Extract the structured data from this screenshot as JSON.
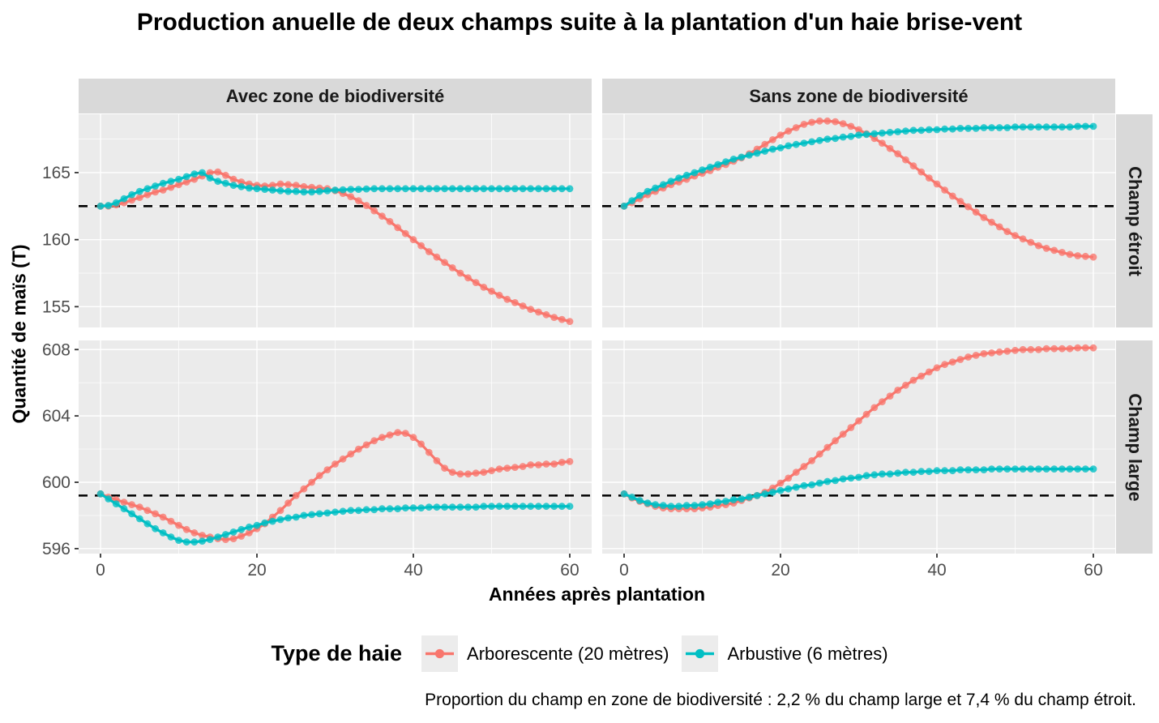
{
  "title": "Production anuelle de deux champs suite à la plantation d'un haie brise-vent",
  "caption": "Proportion du champ en zone de biodiversité :  2,2 % du champ large et 7,4 % du champ étroit.",
  "legend": {
    "title": "Type de haie",
    "entries": [
      {
        "label": "Arborescente (20 mètres)",
        "color": "#F8766D"
      },
      {
        "label": "Arbustive (6 mètres)",
        "color": "#00BFC4"
      }
    ]
  },
  "colors": {
    "arborescente": "#F8766D",
    "arbustive": "#00BFC4",
    "panel_bg": "#EBEBEB",
    "strip_bg": "#D9D9D9",
    "grid": "#FFFFFF",
    "hline": "#000000",
    "tick_label": "#4D4D4D",
    "tick_mark": "#333333"
  },
  "chart_data": {
    "type": "line",
    "title": "Production anuelle de deux champs suite à la plantation d'un haie brise-vent",
    "xlabel": "Années après plantation",
    "ylabel": "Quantité de maïs (T)",
    "legend_position": "bottom",
    "grid": true,
    "col_facets": [
      "Avec zone de biodiversité",
      "Sans zone de biodiversité"
    ],
    "row_facets": [
      "Champ étroit",
      "Champ large"
    ],
    "x_axis": {
      "ticks": [
        0,
        20,
        40,
        60
      ],
      "lim": [
        -2.8,
        62.8
      ],
      "start": 0,
      "step": 1,
      "count": 61
    },
    "rows": [
      {
        "name": "Champ étroit",
        "y_ticks": [
          155,
          160,
          165
        ],
        "ylim": [
          153.45,
          169.35
        ],
        "hline": 162.5
      },
      {
        "name": "Champ large",
        "y_ticks": [
          596,
          600,
          604,
          608
        ],
        "ylim": [
          595.7,
          608.55
        ],
        "hline": 599.2
      }
    ],
    "panels": [
      {
        "col": 0,
        "row": 0,
        "col_facet": "Avec zone de biodiversité",
        "row_facet": "Champ étroit",
        "series": [
          {
            "name": "Arborescente (20 mètres)",
            "values": [
              162.5,
              162.5,
              162.6,
              162.75,
              162.95,
              163.15,
              163.35,
              163.55,
              163.7,
              163.9,
              164.1,
              164.3,
              164.5,
              164.75,
              165.0,
              165.05,
              164.8,
              164.5,
              164.3,
              164.15,
              164.05,
              164.0,
              164.05,
              164.15,
              164.1,
              164.05,
              163.95,
              163.9,
              163.85,
              163.8,
              163.65,
              163.45,
              163.2,
              162.9,
              162.55,
              162.15,
              161.75,
              161.35,
              160.9,
              160.45,
              160.0,
              159.55,
              159.1,
              158.7,
              158.3,
              157.9,
              157.5,
              157.15,
              156.8,
              156.45,
              156.15,
              155.85,
              155.55,
              155.3,
              155.05,
              154.8,
              154.6,
              154.4,
              154.2,
              154.05,
              153.9
            ]
          },
          {
            "name": "Arbustive (6 mètres)",
            "values": [
              162.5,
              162.55,
              162.75,
              163.05,
              163.35,
              163.6,
              163.8,
              164.0,
              164.2,
              164.35,
              164.5,
              164.7,
              164.9,
              165.0,
              164.6,
              164.35,
              164.2,
              164.05,
              163.95,
              163.85,
              163.8,
              163.75,
              163.7,
              163.65,
              163.6,
              163.6,
              163.55,
              163.55,
              163.6,
              163.65,
              163.7,
              163.72,
              163.75,
              163.75,
              163.78,
              163.8,
              163.8,
              163.8,
              163.8,
              163.8,
              163.8,
              163.8,
              163.8,
              163.8,
              163.8,
              163.8,
              163.8,
              163.8,
              163.8,
              163.8,
              163.8,
              163.8,
              163.8,
              163.8,
              163.8,
              163.8,
              163.8,
              163.8,
              163.8,
              163.8,
              163.8
            ]
          }
        ]
      },
      {
        "col": 1,
        "row": 0,
        "col_facet": "Sans zone de biodiversité",
        "row_facet": "Champ étroit",
        "series": [
          {
            "name": "Arborescente (20 mètres)",
            "values": [
              162.5,
              162.75,
              163.05,
              163.35,
              163.6,
              163.85,
              164.1,
              164.3,
              164.5,
              164.75,
              164.95,
              165.15,
              165.4,
              165.6,
              165.85,
              166.1,
              166.4,
              166.75,
              167.1,
              167.45,
              167.8,
              168.1,
              168.35,
              168.6,
              168.75,
              168.85,
              168.85,
              168.8,
              168.65,
              168.45,
              168.2,
              167.9,
              167.55,
              167.2,
              166.8,
              166.4,
              165.95,
              165.5,
              165.05,
              164.6,
              164.15,
              163.7,
              163.25,
              162.85,
              162.45,
              162.05,
              161.65,
              161.3,
              160.95,
              160.6,
              160.3,
              160.05,
              159.8,
              159.55,
              159.35,
              159.2,
              159.05,
              158.9,
              158.8,
              158.75,
              158.7
            ]
          },
          {
            "name": "Arbustive (6 mètres)",
            "values": [
              162.5,
              162.9,
              163.3,
              163.6,
              163.85,
              164.1,
              164.35,
              164.6,
              164.8,
              165.0,
              165.2,
              165.4,
              165.6,
              165.8,
              166.0,
              166.15,
              166.3,
              166.45,
              166.6,
              166.75,
              166.85,
              167.0,
              167.1,
              167.2,
              167.3,
              167.4,
              167.5,
              167.55,
              167.65,
              167.7,
              167.8,
              167.85,
              167.9,
              167.95,
              168.0,
              168.05,
              168.1,
              168.15,
              168.15,
              168.2,
              168.2,
              168.25,
              168.25,
              168.3,
              168.3,
              168.3,
              168.35,
              168.35,
              168.35,
              168.35,
              168.4,
              168.4,
              168.4,
              168.4,
              168.4,
              168.4,
              168.4,
              168.4,
              168.45,
              168.45,
              168.45
            ]
          }
        ]
      },
      {
        "col": 0,
        "row": 1,
        "col_facet": "Avec zone de biodiversité",
        "row_facet": "Champ large",
        "series": [
          {
            "name": "Arborescente (20 mètres)",
            "values": [
              599.3,
              599.1,
              598.95,
              598.8,
              598.65,
              598.5,
              598.3,
              598.1,
              597.9,
              597.65,
              597.4,
              597.15,
              596.95,
              596.8,
              596.7,
              596.6,
              596.55,
              596.6,
              596.75,
              596.95,
              597.2,
              597.5,
              597.9,
              598.3,
              598.75,
              599.2,
              599.6,
              600.0,
              600.4,
              600.75,
              601.1,
              601.4,
              601.7,
              602.0,
              602.25,
              602.5,
              602.7,
              602.85,
              603.0,
              602.95,
              602.7,
              602.3,
              601.8,
              601.3,
              600.85,
              600.6,
              600.5,
              600.5,
              600.55,
              600.6,
              600.7,
              600.8,
              600.85,
              600.9,
              600.95,
              601.05,
              601.05,
              601.1,
              601.1,
              601.2,
              601.25
            ]
          },
          {
            "name": "Arbustive (6 mètres)",
            "values": [
              599.3,
              599.0,
              598.7,
              598.4,
              598.1,
              597.8,
              597.5,
              597.2,
              596.95,
              596.7,
              596.5,
              596.4,
              596.4,
              596.45,
              596.55,
              596.7,
              596.85,
              597.0,
              597.15,
              597.3,
              597.4,
              597.55,
              597.65,
              597.75,
              597.85,
              597.9,
              598.0,
              598.05,
              598.1,
              598.15,
              598.2,
              598.25,
              598.3,
              598.3,
              598.35,
              598.35,
              598.4,
              598.4,
              598.4,
              598.45,
              598.45,
              598.45,
              598.5,
              598.5,
              598.5,
              598.5,
              598.5,
              598.5,
              598.5,
              598.55,
              598.55,
              598.55,
              598.55,
              598.55,
              598.55,
              598.55,
              598.55,
              598.55,
              598.55,
              598.55,
              598.55
            ]
          }
        ]
      },
      {
        "col": 1,
        "row": 1,
        "col_facet": "Sans zone de biodiversité",
        "row_facet": "Champ large",
        "series": [
          {
            "name": "Arborescente (20 mètres)",
            "values": [
              599.3,
              599.05,
              598.85,
              598.7,
              598.55,
              598.45,
              598.4,
              598.4,
              598.4,
              598.4,
              598.45,
              598.5,
              598.6,
              598.65,
              598.75,
              598.9,
              599.05,
              599.2,
              599.4,
              599.65,
              599.95,
              600.25,
              600.6,
              600.95,
              601.3,
              601.7,
              602.1,
              602.5,
              602.9,
              603.3,
              603.7,
              604.1,
              604.5,
              604.85,
              605.2,
              605.55,
              605.85,
              606.15,
              606.4,
              606.65,
              606.9,
              607.1,
              607.25,
              607.4,
              607.55,
              607.65,
              607.75,
              607.8,
              607.85,
              607.9,
              607.95,
              608.0,
              608.0,
              608.0,
              608.05,
              608.05,
              608.05,
              608.05,
              608.1,
              608.1,
              608.1
            ]
          },
          {
            "name": "Arbustive (6 mètres)",
            "values": [
              599.3,
              599.1,
              598.9,
              598.75,
              598.65,
              598.6,
              598.55,
              598.55,
              598.6,
              598.6,
              598.65,
              598.7,
              598.8,
              598.85,
              598.95,
              599.0,
              599.1,
              599.2,
              599.3,
              599.4,
              599.5,
              599.6,
              599.7,
              599.8,
              599.85,
              599.95,
              600.05,
              600.1,
              600.2,
              600.25,
              600.3,
              600.4,
              600.45,
              600.5,
              600.5,
              600.55,
              600.6,
              600.6,
              600.65,
              600.65,
              600.7,
              600.7,
              600.7,
              600.75,
              600.75,
              600.75,
              600.75,
              600.8,
              600.8,
              600.8,
              600.8,
              600.8,
              600.8,
              600.8,
              600.8,
              600.8,
              600.8,
              600.8,
              600.8,
              600.8,
              600.8
            ]
          }
        ]
      }
    ]
  }
}
